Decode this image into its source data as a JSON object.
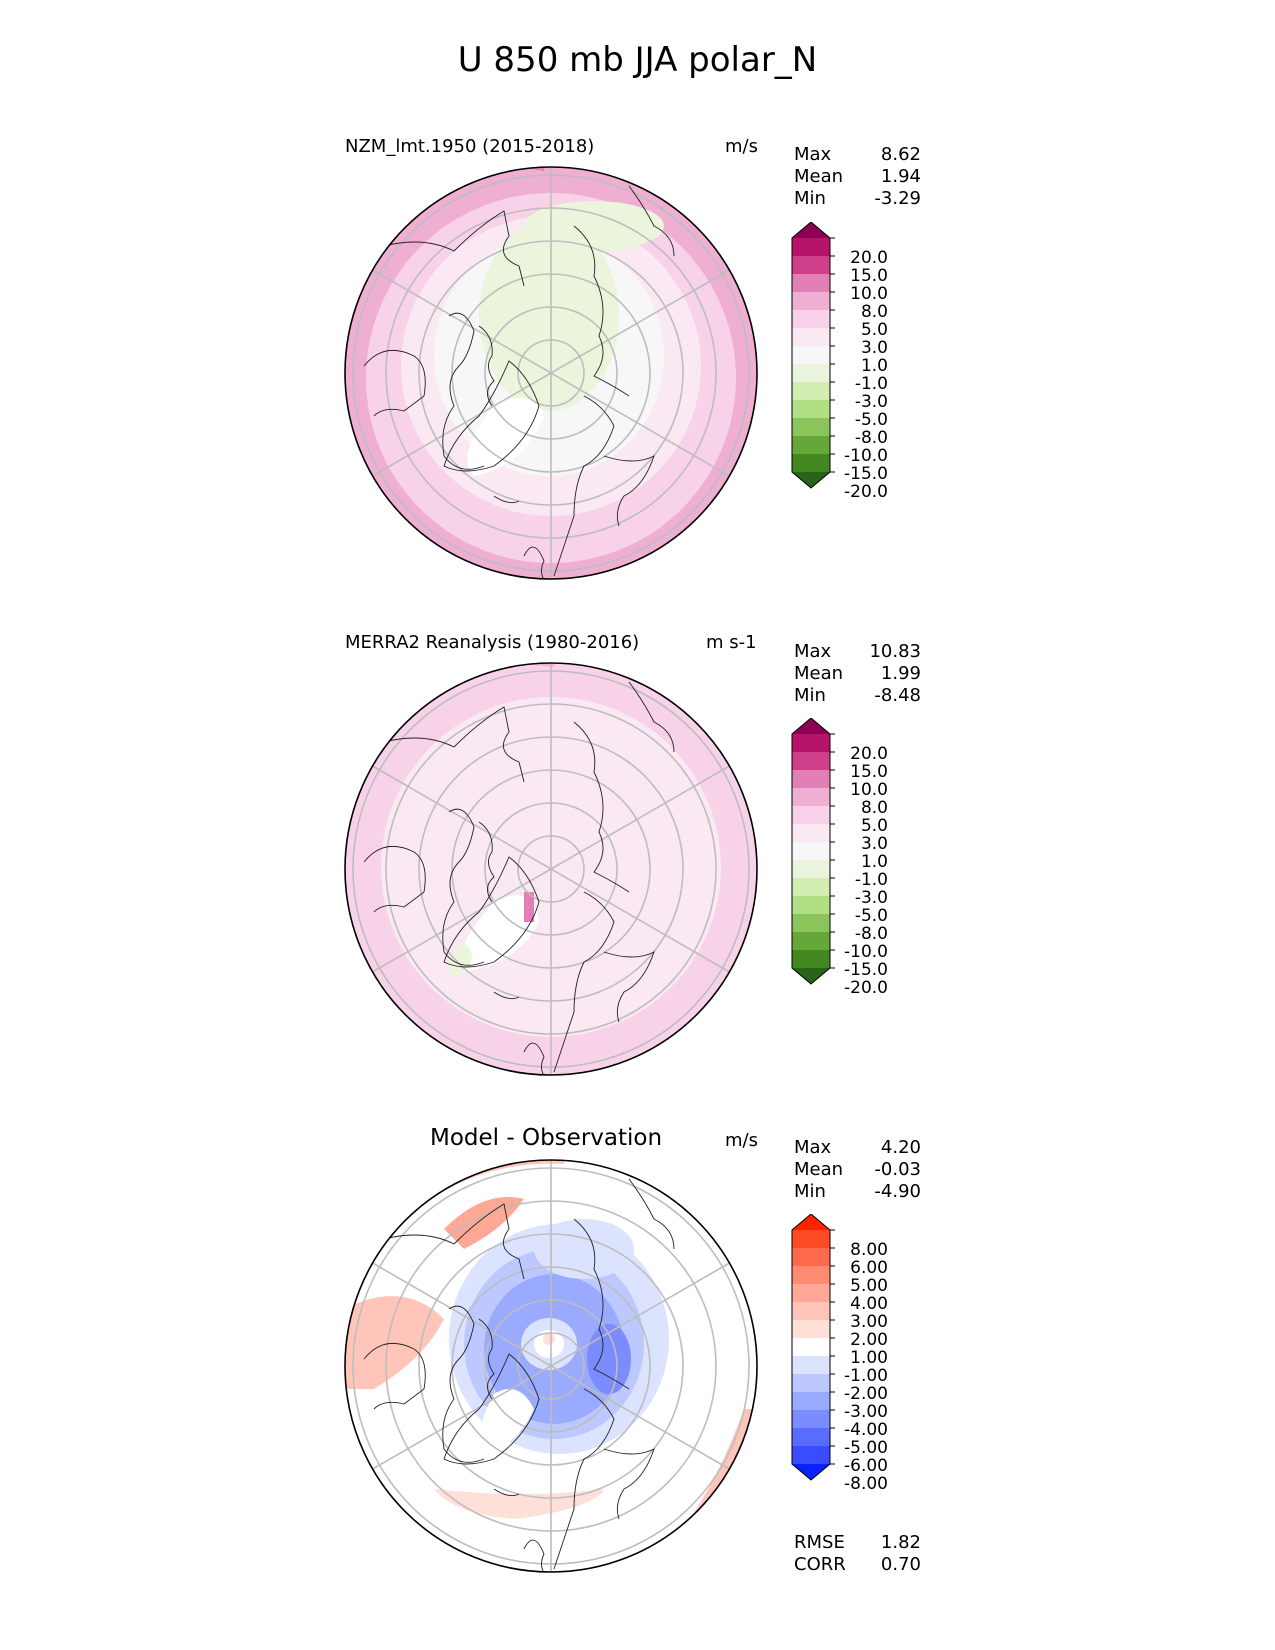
{
  "figure": {
    "title": "U 850 mb JJA polar_N"
  },
  "panels": [
    {
      "name": "model",
      "title": "NZM_lmt.1950 (2015-2018)",
      "units": "m/s",
      "stats": [
        {
          "label": "Max",
          "value": "8.62"
        },
        {
          "label": "Mean",
          "value": "1.94"
        },
        {
          "label": "Min",
          "value": "-3.29"
        }
      ],
      "colorbar": {
        "labels": [
          "20.0",
          "15.0",
          "10.0",
          "8.0",
          "5.0",
          "3.0",
          "1.0",
          "-1.0",
          "-3.0",
          "-5.0",
          "-8.0",
          "-10.0",
          "-15.0",
          "-20.0"
        ],
        "colors": [
          "#8e0152",
          "#b8136b",
          "#d03f8a",
          "#e280b5",
          "#efafd3",
          "#f8d2e8",
          "#fae8f2",
          "#f7f7f7",
          "#eaf5dc",
          "#d2edb1",
          "#b2df86",
          "#8cc55b",
          "#66a73a",
          "#43871f",
          "#276419"
        ]
      },
      "field": {
        "type": "U",
        "level_mb": 850,
        "season": "JJA"
      }
    },
    {
      "name": "obs",
      "title": "MERRA2 Reanalysis (1980-2016)",
      "units": "m s-1",
      "stats": [
        {
          "label": "Max",
          "value": "10.83"
        },
        {
          "label": "Mean",
          "value": "1.99"
        },
        {
          "label": "Min",
          "value": "-8.48"
        }
      ],
      "colorbar": {
        "labels": [
          "20.0",
          "15.0",
          "10.0",
          "8.0",
          "5.0",
          "3.0",
          "1.0",
          "-1.0",
          "-3.0",
          "-5.0",
          "-8.0",
          "-10.0",
          "-15.0",
          "-20.0"
        ],
        "colors": [
          "#8e0152",
          "#b8136b",
          "#d03f8a",
          "#e280b5",
          "#efafd3",
          "#f8d2e8",
          "#fae8f2",
          "#f7f7f7",
          "#eaf5dc",
          "#d2edb1",
          "#b2df86",
          "#8cc55b",
          "#66a73a",
          "#43871f",
          "#276419"
        ]
      },
      "field": {
        "type": "U",
        "level_mb": 850,
        "season": "JJA"
      }
    },
    {
      "name": "diff",
      "title": "Model - Observation",
      "units": "m/s",
      "stats": [
        {
          "label": "Max",
          "value": "4.20"
        },
        {
          "label": "Mean",
          "value": "-0.03"
        },
        {
          "label": "Min",
          "value": "-4.90"
        }
      ],
      "extra_stats": [
        {
          "label": "RMSE",
          "value": "1.82"
        },
        {
          "label": "CORR",
          "value": "0.70"
        }
      ],
      "colorbar": {
        "labels": [
          "8.00",
          "6.00",
          "5.00",
          "4.00",
          "3.00",
          "2.00",
          "1.00",
          "-1.00",
          "-2.00",
          "-3.00",
          "-4.00",
          "-5.00",
          "-6.00",
          "-8.00"
        ],
        "colors": [
          "#ff2200",
          "#ff4a26",
          "#ff6a4c",
          "#ff8a72",
          "#ffa896",
          "#ffc5b8",
          "#ffe0d8",
          "#ffffff",
          "#dce3ff",
          "#bcc8ff",
          "#9aabff",
          "#7a8cff",
          "#5a6cff",
          "#3a4cff",
          "#0a22ff"
        ]
      },
      "field": {
        "type": "U difference",
        "level_mb": 850,
        "season": "JJA"
      }
    }
  ]
}
